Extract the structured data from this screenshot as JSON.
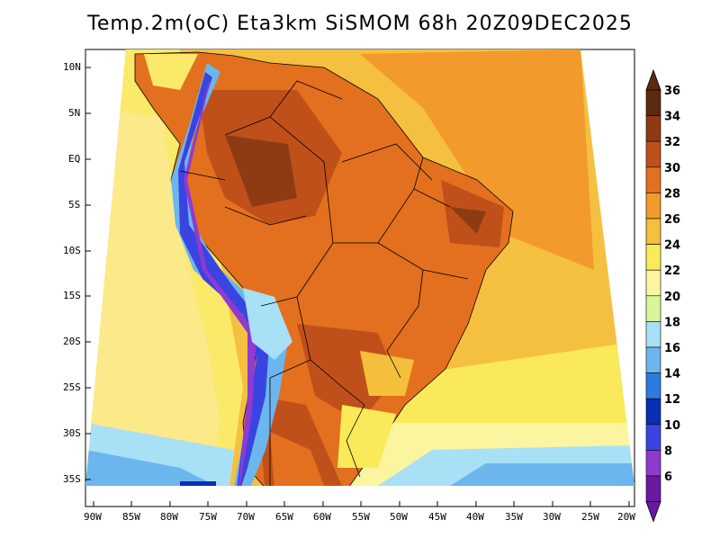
{
  "title": "Temp.2m(oC) Eta3km SiSMOM 68h 20Z09DEC2025",
  "lat_labels": [
    "10N",
    "5N",
    "EQ",
    "5S",
    "10S",
    "15S",
    "20S",
    "25S",
    "30S",
    "35S"
  ],
  "lon_labels": [
    "90W",
    "85W",
    "80W",
    "75W",
    "70W",
    "65W",
    "60W",
    "55W",
    "50W",
    "45W",
    "40W",
    "35W",
    "30W",
    "25W",
    "20W"
  ],
  "colorbar": {
    "labels": [
      "36",
      "34",
      "32",
      "30",
      "28",
      "26",
      "24",
      "22",
      "20",
      "18",
      "16",
      "14",
      "12",
      "10",
      "8",
      "6"
    ],
    "colors": [
      "#5c2a10",
      "#8e3b14",
      "#c0501a",
      "#e2701f",
      "#f29a2b",
      "#f5bf3c",
      "#faea5a",
      "#fbf5a0",
      "#d8f59a",
      "#a8e0f5",
      "#6cb6ee",
      "#2c7ce0",
      "#0a2eb4",
      "#3a44e0",
      "#8f3ad0",
      "#6a1aa0"
    ]
  },
  "chart_data": {
    "type": "heatmap",
    "title": "Temp.2m(oC) Eta3km SiSMOM 68h 20Z09DEC2025",
    "variable": "2 m temperature (°C)",
    "model": "Eta3km SiSMOM",
    "forecast_hour": "68h",
    "valid_time": "20Z09DEC2025",
    "x_range": [
      "90W",
      "20W"
    ],
    "y_range": [
      "37S",
      "12N"
    ],
    "color_scale_min": 6,
    "color_scale_max": 36,
    "color_step": 2
  }
}
